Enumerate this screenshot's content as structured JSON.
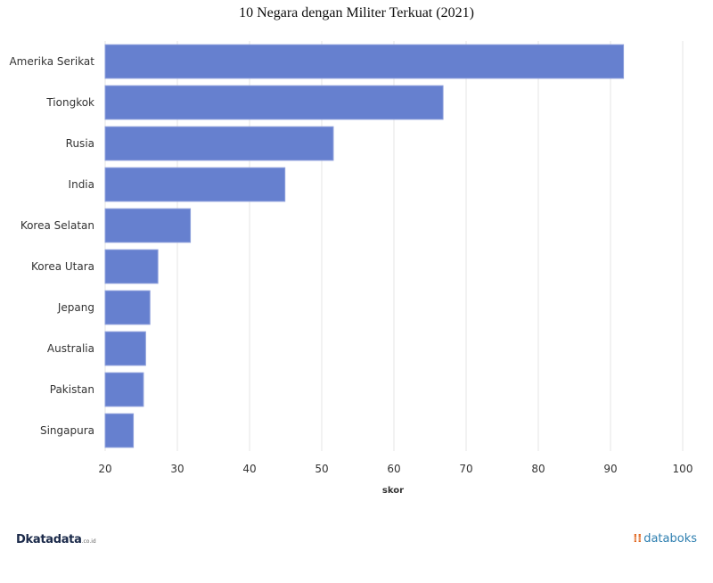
{
  "chart_data": {
    "type": "bar",
    "orientation": "horizontal",
    "title": "10 Negara dengan Militer Terkuat (2021)",
    "xlabel": "skor",
    "ylabel": "",
    "categories": [
      "Amerika Serikat",
      "Tiongkok",
      "Rusia",
      "India",
      "Korea Selatan",
      "Korea Utara",
      "Jepang",
      "Australia",
      "Pakistan",
      "Singapura"
    ],
    "values": [
      91.8,
      66.8,
      51.6,
      44.9,
      31.8,
      27.3,
      26.2,
      25.6,
      25.3,
      23.9
    ],
    "xlim": [
      20,
      100
    ],
    "xticks": [
      20,
      30,
      40,
      50,
      60,
      70,
      80,
      90,
      100
    ],
    "grid": true,
    "bar_color": "#6680cf",
    "legend": "none"
  },
  "branding": {
    "left_mark": "D",
    "left_name": "katadata",
    "left_suffix": ".co.id",
    "right_mark": "⁞⁞",
    "right_name": "databoks"
  }
}
